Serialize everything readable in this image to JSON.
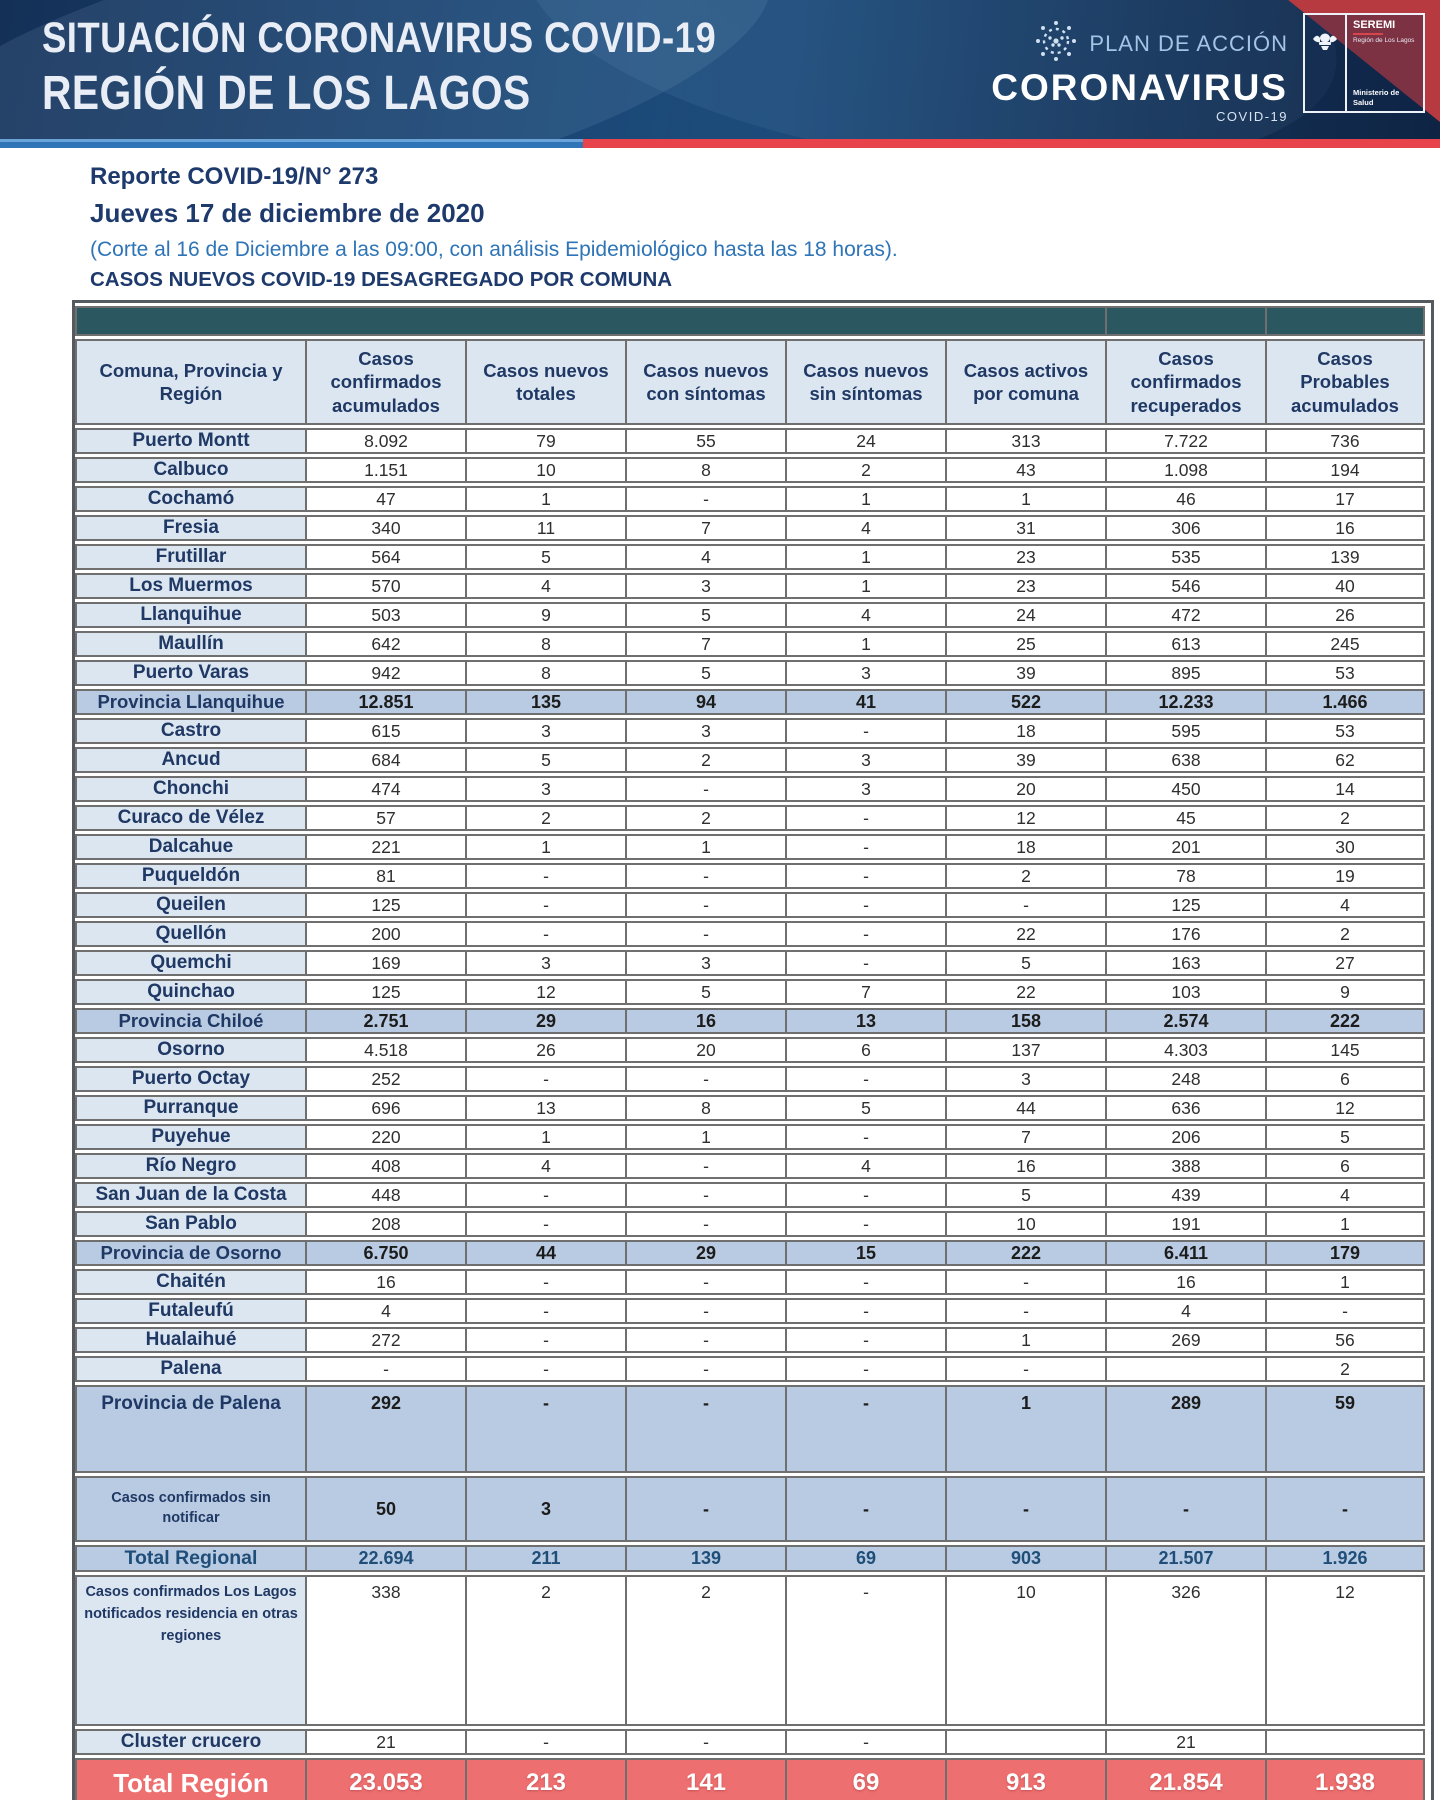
{
  "banner": {
    "title_line1": "SITUACIÓN CORONAVIRUS COVID-19",
    "title_line2": "REGIÓN DE LOS LAGOS",
    "plan_label": "PLAN DE ACCIÓN",
    "brand": "CORONAVIRUS",
    "brand_sub": "COVID-19",
    "seremi_title": "SEREMI",
    "seremi_region": "Región de Los Lagos",
    "seremi_ministry": "Ministerio de Salud",
    "colors": {
      "navy": "#1a4674",
      "stripe_blue": "#2e74b6",
      "stripe_red": "#e8434a",
      "accent_red": "#b83a41"
    }
  },
  "report": {
    "number_line": "Reporte COVID-19/N° 273",
    "date_line": "Jueves 17 de diciembre de 2020",
    "cutoff_line": "(Corte al 16 de Diciembre a las 09:00, con análisis Epidemiológico hasta las 18 horas).",
    "subtitle": "CASOS NUEVOS COVID-19 DESAGREGADO POR COMUNA"
  },
  "table": {
    "colors": {
      "teal_band": "#2b5761",
      "header_blue": "#dce6f1",
      "subtotal_blue": "#b9cbe2",
      "total_red": "#ee6f70"
    },
    "columns": [
      "Comuna, Provincia y Región",
      "Casos confirmados acumulados",
      "Casos nuevos totales",
      "Casos nuevos con síntomas",
      "Casos nuevos sin síntomas",
      "Casos activos por comuna",
      "Casos confirmados recuperados",
      "Casos Probables acumulados"
    ],
    "rows": [
      {
        "label": "Puerto Montt",
        "type": "comuna",
        "values": [
          "8.092",
          "79",
          "55",
          "24",
          "313",
          "7.722",
          "736"
        ]
      },
      {
        "label": "Calbuco",
        "type": "comuna",
        "values": [
          "1.151",
          "10",
          "8",
          "2",
          "43",
          "1.098",
          "194"
        ]
      },
      {
        "label": "Cochamó",
        "type": "comuna",
        "values": [
          "47",
          "1",
          "-",
          "1",
          "1",
          "46",
          "17"
        ]
      },
      {
        "label": "Fresia",
        "type": "comuna",
        "values": [
          "340",
          "11",
          "7",
          "4",
          "31",
          "306",
          "16"
        ]
      },
      {
        "label": "Frutillar",
        "type": "comuna",
        "values": [
          "564",
          "5",
          "4",
          "1",
          "23",
          "535",
          "139"
        ]
      },
      {
        "label": "Los Muermos",
        "type": "comuna",
        "values": [
          "570",
          "4",
          "3",
          "1",
          "23",
          "546",
          "40"
        ]
      },
      {
        "label": "Llanquihue",
        "type": "comuna",
        "values": [
          "503",
          "9",
          "5",
          "4",
          "24",
          "472",
          "26"
        ]
      },
      {
        "label": "Maullín",
        "type": "comuna",
        "values": [
          "642",
          "8",
          "7",
          "1",
          "25",
          "613",
          "245"
        ]
      },
      {
        "label": "Puerto Varas",
        "type": "comuna",
        "values": [
          "942",
          "8",
          "5",
          "3",
          "39",
          "895",
          "53"
        ]
      },
      {
        "label": "Provincia Llanquihue",
        "type": "province",
        "values": [
          "12.851",
          "135",
          "94",
          "41",
          "522",
          "12.233",
          "1.466"
        ]
      },
      {
        "label": "Castro",
        "type": "comuna",
        "values": [
          "615",
          "3",
          "3",
          "-",
          "18",
          "595",
          "53"
        ]
      },
      {
        "label": "Ancud",
        "type": "comuna",
        "values": [
          "684",
          "5",
          "2",
          "3",
          "39",
          "638",
          "62"
        ]
      },
      {
        "label": "Chonchi",
        "type": "comuna",
        "values": [
          "474",
          "3",
          "-",
          "3",
          "20",
          "450",
          "14"
        ]
      },
      {
        "label": "Curaco de Vélez",
        "type": "comuna",
        "values": [
          "57",
          "2",
          "2",
          "-",
          "12",
          "45",
          "2"
        ]
      },
      {
        "label": "Dalcahue",
        "type": "comuna",
        "values": [
          "221",
          "1",
          "1",
          "-",
          "18",
          "201",
          "30"
        ]
      },
      {
        "label": "Puqueldón",
        "type": "comuna",
        "values": [
          "81",
          "-",
          "-",
          "-",
          "2",
          "78",
          "19"
        ]
      },
      {
        "label": "Queilen",
        "type": "comuna",
        "values": [
          "125",
          "-",
          "-",
          "-",
          "-",
          "125",
          "4"
        ]
      },
      {
        "label": "Quellón",
        "type": "comuna",
        "values": [
          "200",
          "-",
          "-",
          "-",
          "22",
          "176",
          "2"
        ]
      },
      {
        "label": "Quemchi",
        "type": "comuna",
        "values": [
          "169",
          "3",
          "3",
          "-",
          "5",
          "163",
          "27"
        ]
      },
      {
        "label": "Quinchao",
        "type": "comuna",
        "values": [
          "125",
          "12",
          "5",
          "7",
          "22",
          "103",
          "9"
        ]
      },
      {
        "label": "Provincia Chiloé",
        "type": "province",
        "values": [
          "2.751",
          "29",
          "16",
          "13",
          "158",
          "2.574",
          "222"
        ]
      },
      {
        "label": "Osorno",
        "type": "comuna",
        "values": [
          "4.518",
          "26",
          "20",
          "6",
          "137",
          "4.303",
          "145"
        ]
      },
      {
        "label": "Puerto Octay",
        "type": "comuna",
        "values": [
          "252",
          "-",
          "-",
          "-",
          "3",
          "248",
          "6"
        ]
      },
      {
        "label": "Purranque",
        "type": "comuna",
        "values": [
          "696",
          "13",
          "8",
          "5",
          "44",
          "636",
          "12"
        ]
      },
      {
        "label": "Puyehue",
        "type": "comuna",
        "values": [
          "220",
          "1",
          "1",
          "-",
          "7",
          "206",
          "5"
        ]
      },
      {
        "label": "Río Negro",
        "type": "comuna",
        "values": [
          "408",
          "4",
          "-",
          "4",
          "16",
          "388",
          "6"
        ]
      },
      {
        "label": "San Juan de la Costa",
        "type": "comuna",
        "values": [
          "448",
          "-",
          "-",
          "-",
          "5",
          "439",
          "4"
        ]
      },
      {
        "label": "San Pablo",
        "type": "comuna",
        "values": [
          "208",
          "-",
          "-",
          "-",
          "10",
          "191",
          "1"
        ]
      },
      {
        "label": "Provincia de Osorno",
        "type": "province",
        "values": [
          "6.750",
          "44",
          "29",
          "15",
          "222",
          "6.411",
          "179"
        ]
      },
      {
        "label": "Chaitén",
        "type": "comuna",
        "values": [
          "16",
          "-",
          "-",
          "-",
          "-",
          "16",
          "1"
        ]
      },
      {
        "label": "Futaleufú",
        "type": "comuna",
        "values": [
          "4",
          "-",
          "-",
          "-",
          "-",
          "4",
          "-"
        ]
      },
      {
        "label": "Hualaihué",
        "type": "comuna",
        "values": [
          "272",
          "-",
          "-",
          "-",
          "1",
          "269",
          "56"
        ]
      },
      {
        "label": "Palena",
        "type": "comuna",
        "values": [
          "-",
          "-",
          "-",
          "-",
          "-",
          "",
          "2"
        ]
      },
      {
        "label": "Provincia de Palena",
        "type": "province-tall",
        "values": [
          "292",
          "-",
          "-",
          "-",
          "1",
          "289",
          "59"
        ]
      },
      {
        "label": "Casos confirmados sin notificar",
        "type": "special-blue",
        "values": [
          "50",
          "3",
          "-",
          "-",
          "-",
          "-",
          "-"
        ]
      },
      {
        "label": "Total Regional",
        "type": "total-blue",
        "values": [
          "22.694",
          "211",
          "139",
          "69",
          "903",
          "21.507",
          "1.926"
        ]
      },
      {
        "label": "Casos confirmados Los Lagos  notificados residencia en otras regiones",
        "type": "special-white",
        "values": [
          "338",
          "2",
          "2",
          "-",
          "10",
          "326",
          "12"
        ]
      },
      {
        "label": "Cluster crucero",
        "type": "comuna",
        "values": [
          "21",
          "-",
          "-",
          "-",
          "",
          "21",
          ""
        ]
      },
      {
        "label": "Total Región",
        "type": "total-red",
        "values": [
          "23.053",
          "213",
          "141",
          "69",
          "913",
          "21.854",
          "1.938"
        ]
      }
    ]
  }
}
